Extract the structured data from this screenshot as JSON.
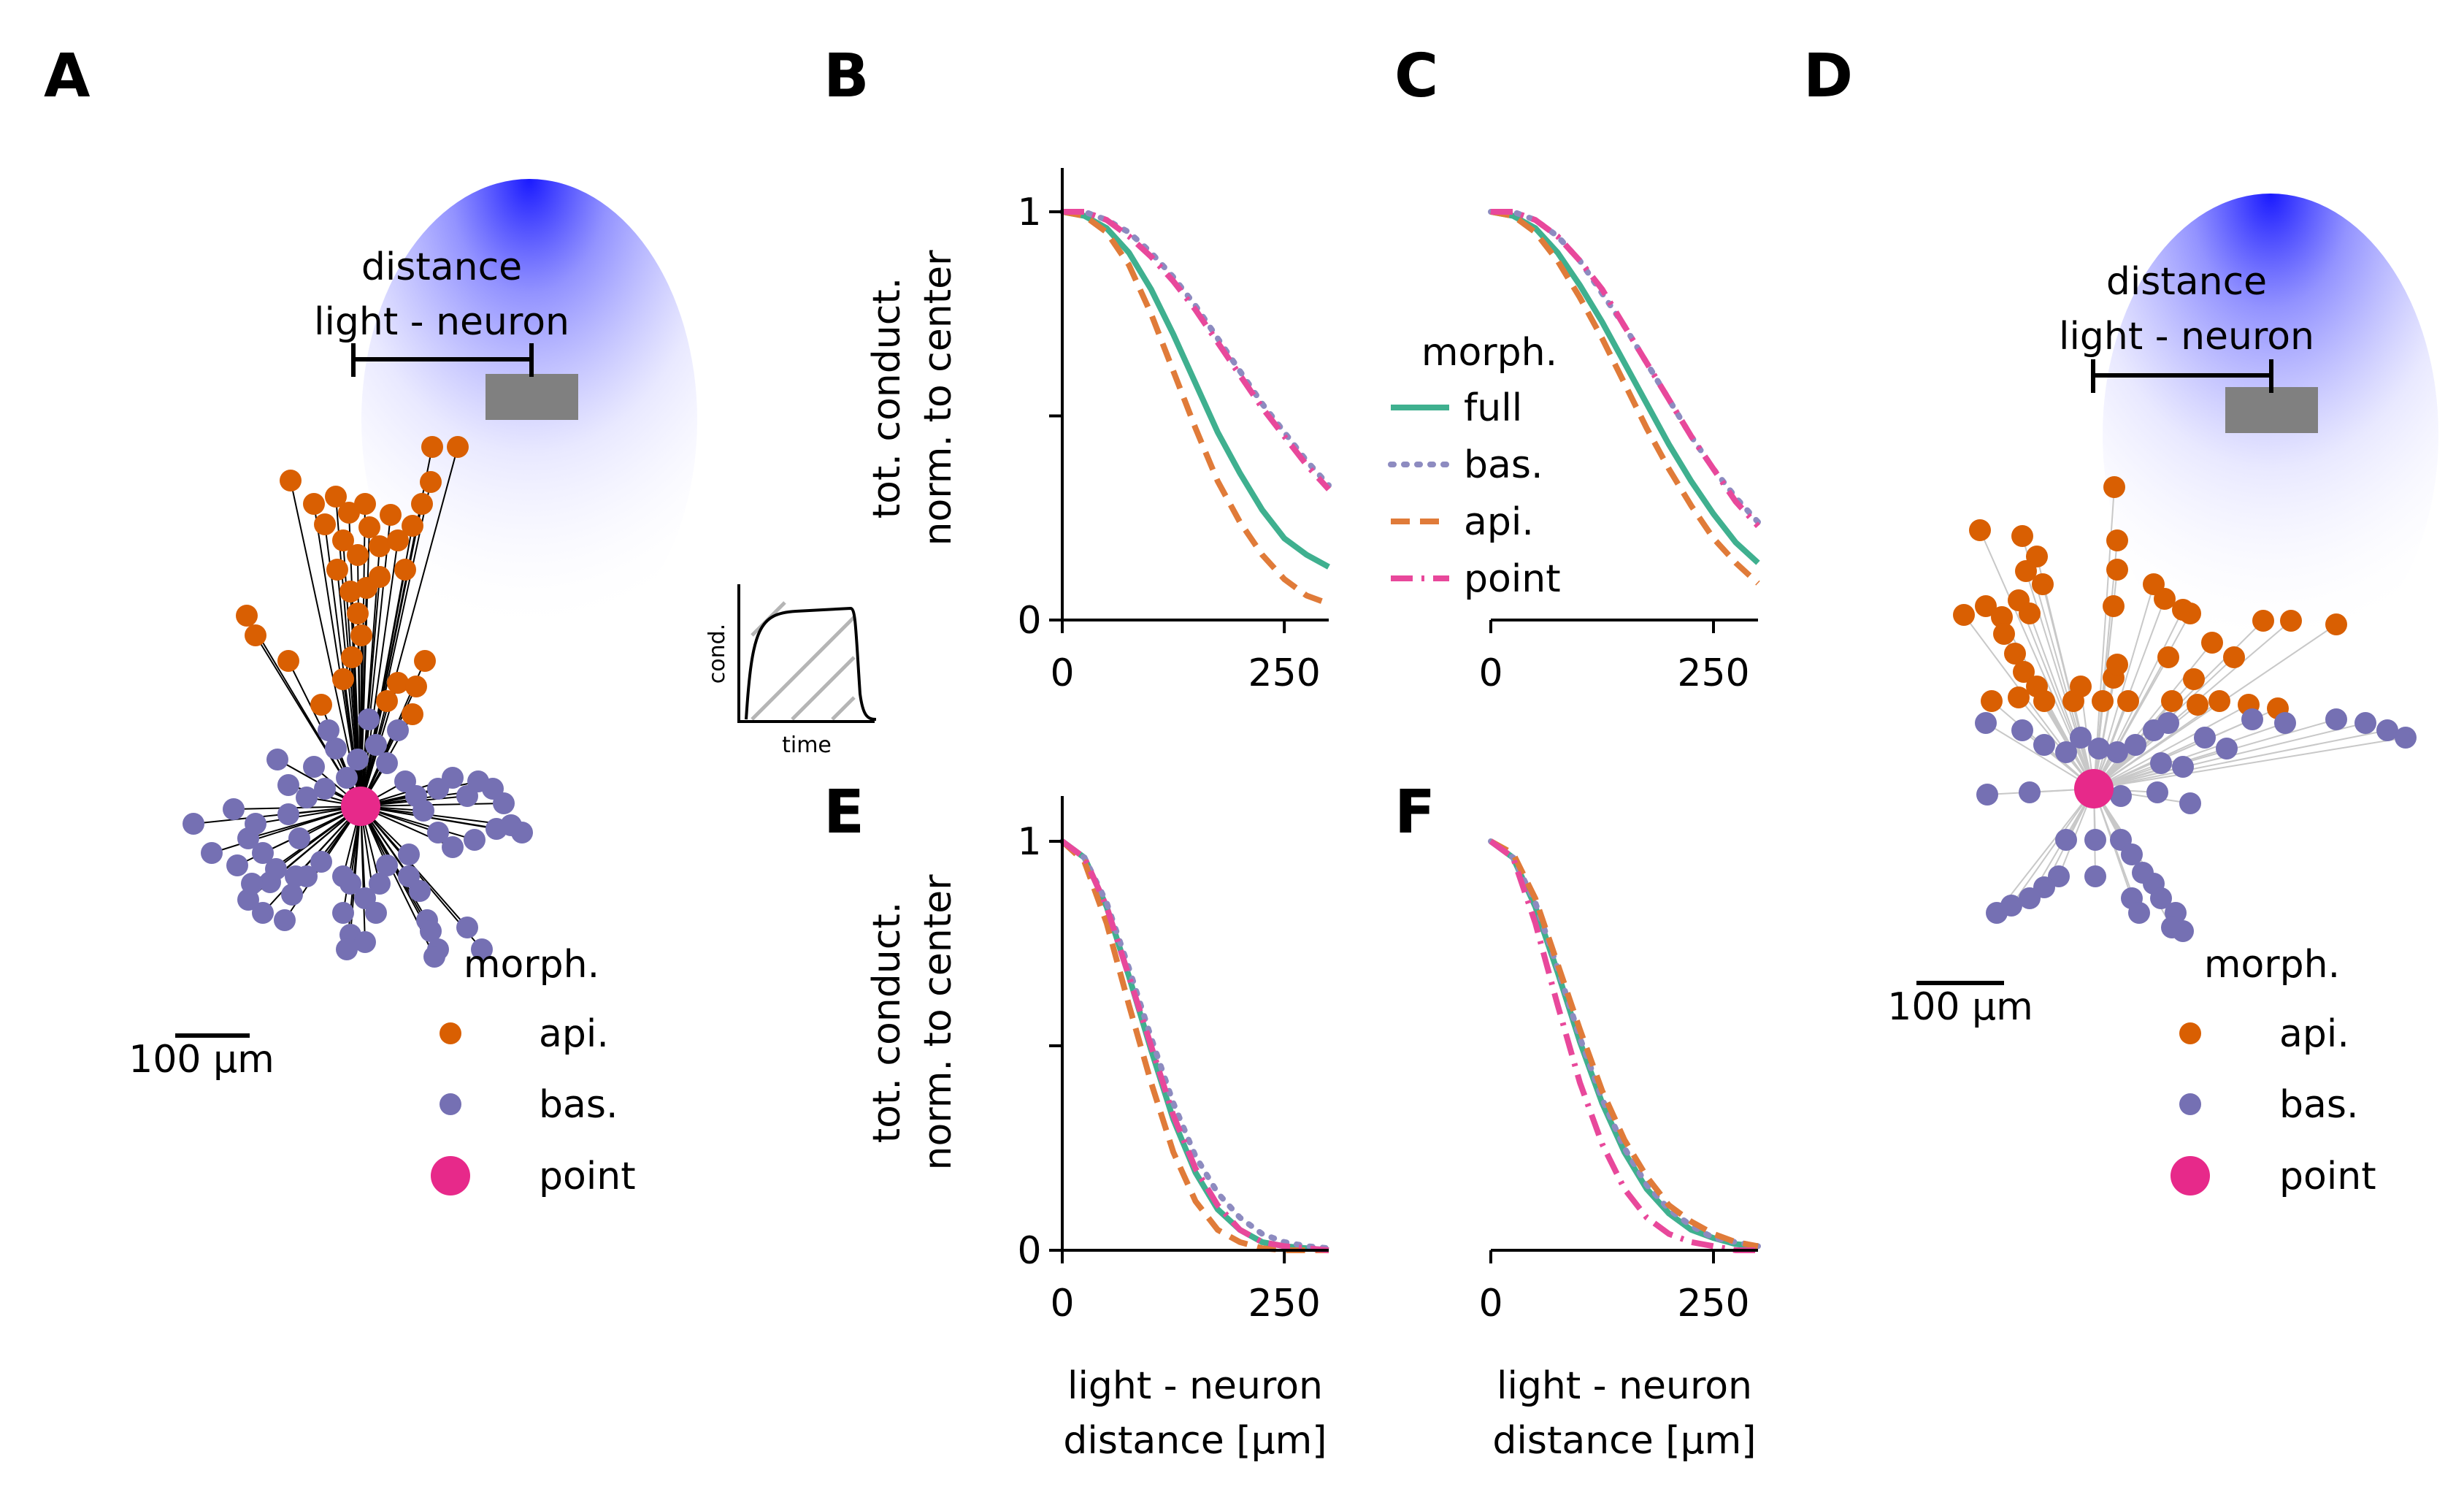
{
  "colors": {
    "full": "#3fb08f",
    "bas": "#8d8bc0",
    "api": "#e07b39",
    "point": "#e8489b",
    "api_marker": "#d95f02",
    "bas_marker": "#7570b3",
    "point_marker": "#e7298a",
    "lamp": "#808080",
    "light": "#1a1aff"
  },
  "panels": {
    "A": "A",
    "B": "B",
    "C": "C",
    "D": "D",
    "E": "E",
    "F": "F"
  },
  "ylabel_line1": "tot. conduct.",
  "ylabel_line2": "norm. to center",
  "xlabel_line1": "light - neuron",
  "xlabel_line2": "distance [µm]",
  "diagram": {
    "distance_line1": "distance",
    "distance_line2": "light - neuron",
    "scale_bar": "100 µm",
    "legend_title": "morph.",
    "legend_items": [
      "api.",
      "bas.",
      "point"
    ]
  },
  "inset": {
    "ylabel": "cond.",
    "xlabel": "time"
  },
  "curve_legend": {
    "title": "morph.",
    "items": [
      "full",
      "bas.",
      "api.",
      "point"
    ]
  },
  "chart_data": [
    {
      "panel": "B",
      "type": "line",
      "xlim": [
        0,
        300
      ],
      "ylim": [
        0,
        1.1
      ],
      "xticks": [
        "0",
        "250"
      ],
      "yticks": [
        "0",
        "1"
      ],
      "series": [
        {
          "name": "full",
          "style": "solid",
          "x": [
            0,
            25,
            50,
            75,
            100,
            125,
            150,
            175,
            200,
            225,
            250,
            275,
            300
          ],
          "y": [
            1,
            0.99,
            0.96,
            0.9,
            0.81,
            0.7,
            0.58,
            0.46,
            0.36,
            0.27,
            0.2,
            0.16,
            0.13
          ]
        },
        {
          "name": "bas.",
          "style": "dotted",
          "x": [
            0,
            25,
            50,
            75,
            100,
            125,
            150,
            175,
            200,
            225,
            250,
            275,
            300
          ],
          "y": [
            1,
            1,
            0.98,
            0.95,
            0.9,
            0.84,
            0.77,
            0.69,
            0.61,
            0.53,
            0.46,
            0.39,
            0.33
          ]
        },
        {
          "name": "api.",
          "style": "dashed",
          "x": [
            0,
            25,
            50,
            75,
            100,
            125,
            150,
            175,
            200,
            225,
            250,
            275,
            300
          ],
          "y": [
            1,
            0.99,
            0.95,
            0.87,
            0.75,
            0.61,
            0.47,
            0.34,
            0.24,
            0.16,
            0.1,
            0.06,
            0.04
          ]
        },
        {
          "name": "point",
          "style": "dashdot",
          "x": [
            0,
            25,
            50,
            75,
            100,
            125,
            150,
            175,
            200,
            225,
            250,
            275,
            300
          ],
          "y": [
            1,
            1,
            0.98,
            0.94,
            0.89,
            0.83,
            0.76,
            0.68,
            0.6,
            0.52,
            0.45,
            0.38,
            0.32
          ]
        }
      ]
    },
    {
      "panel": "C",
      "type": "line",
      "xlim": [
        0,
        300
      ],
      "ylim": [
        0,
        1.1
      ],
      "xticks": [
        "0",
        "250"
      ],
      "yticks": [],
      "series": [
        {
          "name": "full",
          "style": "solid",
          "x": [
            0,
            25,
            50,
            75,
            100,
            125,
            150,
            175,
            200,
            225,
            250,
            275,
            300
          ],
          "y": [
            1,
            0.99,
            0.96,
            0.9,
            0.82,
            0.73,
            0.63,
            0.53,
            0.43,
            0.34,
            0.26,
            0.19,
            0.14
          ]
        },
        {
          "name": "bas.",
          "style": "dotted",
          "x": [
            0,
            25,
            50,
            75,
            100,
            125,
            150,
            175,
            200,
            225,
            250,
            275,
            300
          ],
          "y": [
            1,
            1,
            0.98,
            0.94,
            0.88,
            0.8,
            0.72,
            0.63,
            0.54,
            0.45,
            0.37,
            0.3,
            0.24
          ]
        },
        {
          "name": "api.",
          "style": "dashed",
          "x": [
            0,
            25,
            50,
            75,
            100,
            125,
            150,
            175,
            200,
            225,
            250,
            275,
            300
          ],
          "y": [
            1,
            0.99,
            0.95,
            0.88,
            0.79,
            0.69,
            0.58,
            0.47,
            0.37,
            0.28,
            0.2,
            0.14,
            0.09
          ]
        },
        {
          "name": "point",
          "style": "dashdot",
          "x": [
            0,
            25,
            50,
            75,
            100,
            125,
            150,
            175,
            200,
            225,
            250,
            275,
            300
          ],
          "y": [
            1,
            1,
            0.98,
            0.94,
            0.88,
            0.81,
            0.72,
            0.63,
            0.54,
            0.45,
            0.37,
            0.29,
            0.23
          ]
        }
      ]
    },
    {
      "panel": "E",
      "type": "line",
      "xlim": [
        0,
        300
      ],
      "ylim": [
        0,
        1.1
      ],
      "xticks": [
        "0",
        "250"
      ],
      "yticks": [
        "0",
        "1"
      ],
      "series": [
        {
          "name": "full",
          "style": "solid",
          "x": [
            0,
            25,
            50,
            75,
            100,
            125,
            150,
            175,
            200,
            225,
            250,
            275,
            300
          ],
          "y": [
            1,
            0.96,
            0.84,
            0.67,
            0.49,
            0.32,
            0.19,
            0.1,
            0.05,
            0.02,
            0.01,
            0.005,
            0
          ]
        },
        {
          "name": "bas.",
          "style": "dotted",
          "x": [
            0,
            25,
            50,
            75,
            100,
            125,
            150,
            175,
            200,
            225,
            250,
            275,
            300
          ],
          "y": [
            1,
            0.96,
            0.85,
            0.69,
            0.52,
            0.36,
            0.23,
            0.14,
            0.08,
            0.04,
            0.02,
            0.01,
            0.005
          ]
        },
        {
          "name": "api.",
          "style": "dashed",
          "x": [
            0,
            25,
            50,
            75,
            100,
            125,
            150,
            175,
            200,
            225,
            250,
            275,
            300
          ],
          "y": [
            1,
            0.95,
            0.8,
            0.6,
            0.41,
            0.24,
            0.12,
            0.05,
            0.02,
            0.005,
            0,
            0,
            0
          ]
        },
        {
          "name": "point",
          "style": "dashdot",
          "x": [
            0,
            25,
            50,
            75,
            100,
            125,
            150,
            175,
            200,
            225,
            250,
            275,
            300
          ],
          "y": [
            1,
            0.96,
            0.84,
            0.67,
            0.5,
            0.33,
            0.2,
            0.11,
            0.05,
            0.02,
            0.01,
            0.005,
            0
          ]
        }
      ]
    },
    {
      "panel": "F",
      "type": "line",
      "xlim": [
        0,
        300
      ],
      "ylim": [
        0,
        1.1
      ],
      "xticks": [
        "0",
        "250"
      ],
      "yticks": [],
      "series": [
        {
          "name": "full",
          "style": "solid",
          "x": [
            0,
            25,
            50,
            75,
            100,
            125,
            150,
            175,
            200,
            225,
            250,
            275,
            300
          ],
          "y": [
            1,
            0.96,
            0.84,
            0.68,
            0.51,
            0.36,
            0.24,
            0.15,
            0.09,
            0.05,
            0.03,
            0.015,
            0.01
          ]
        },
        {
          "name": "bas.",
          "style": "dotted",
          "x": [
            0,
            25,
            50,
            75,
            100,
            125,
            150,
            175,
            200,
            225,
            250,
            275,
            300
          ],
          "y": [
            1,
            0.96,
            0.85,
            0.69,
            0.52,
            0.37,
            0.25,
            0.16,
            0.1,
            0.06,
            0.03,
            0.02,
            0.01
          ]
        },
        {
          "name": "api.",
          "style": "dashed",
          "x": [
            0,
            25,
            50,
            75,
            100,
            125,
            150,
            175,
            200,
            225,
            250,
            275,
            300
          ],
          "y": [
            1,
            0.97,
            0.86,
            0.7,
            0.54,
            0.39,
            0.27,
            0.18,
            0.11,
            0.07,
            0.04,
            0.02,
            0.01
          ]
        },
        {
          "name": "point",
          "style": "dashdot",
          "x": [
            0,
            25,
            50,
            75,
            100,
            125,
            150,
            175,
            200,
            225,
            250,
            275,
            300
          ],
          "y": [
            1,
            0.96,
            0.8,
            0.6,
            0.41,
            0.26,
            0.15,
            0.08,
            0.04,
            0.02,
            0.01,
            0,
            0
          ]
        }
      ]
    }
  ]
}
